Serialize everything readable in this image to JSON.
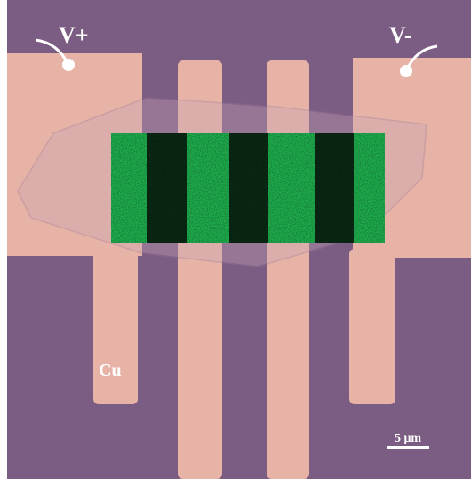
{
  "labels": {
    "v_plus": "V+",
    "v_minus": "V-",
    "material": "Cu",
    "scale_bar": "5 μm"
  }
}
